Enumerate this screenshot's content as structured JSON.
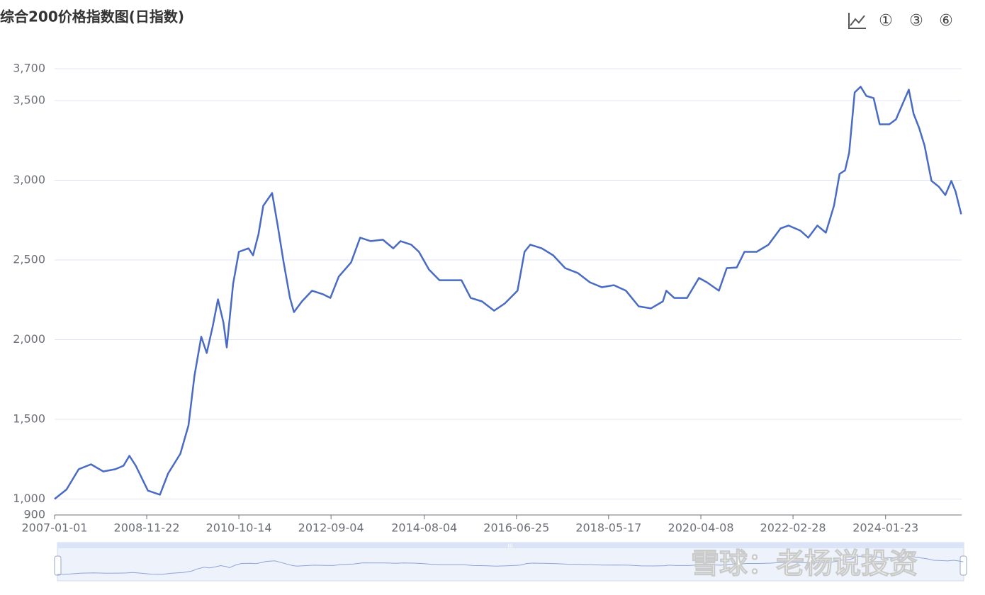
{
  "chart_data": {
    "type": "line",
    "title": "综合200价格指数图(日指数)",
    "toolbar": [
      "①",
      "③",
      "⑥"
    ],
    "watermark": "雪球：老杨说投资",
    "x": [
      "2007-01-01",
      "2007-04-01",
      "2007-07-01",
      "2007-10-01",
      "2008-01-01",
      "2008-04-01",
      "2008-06-01",
      "2008-07-15",
      "2008-09-01",
      "2008-12-01",
      "2009-03-01",
      "2009-05-01",
      "2009-08-01",
      "2009-10-01",
      "2009-11-15",
      "2010-01-05",
      "2010-02-15",
      "2010-04-01",
      "2010-05-10",
      "2010-06-20",
      "2010-07-15",
      "2010-09-01",
      "2010-10-14",
      "2010-12-25",
      "2011-01-28",
      "2011-03-10",
      "2011-04-15",
      "2011-06-20",
      "2011-08-01",
      "2011-09-15",
      "2011-11-01",
      "2011-12-01",
      "2012-01-30",
      "2012-04-15",
      "2012-07-08",
      "2012-08-30",
      "2012-11-01",
      "2013-02-01",
      "2013-04-10",
      "2013-06-28",
      "2013-09-27",
      "2013-12-15",
      "2014-02-07",
      "2014-04-28",
      "2014-06-25",
      "2014-09-08",
      "2014-11-26",
      "2015-02-25",
      "2015-05-10",
      "2015-07-18",
      "2015-10-11",
      "2016-01-10",
      "2016-03-30",
      "2016-07-03",
      "2016-08-25",
      "2016-10-07",
      "2017-01-01",
      "2017-03-28",
      "2017-06-25",
      "2017-09-28",
      "2017-12-27",
      "2018-03-27",
      "2018-06-26",
      "2018-09-24",
      "2018-12-29",
      "2019-03-30",
      "2019-06-28",
      "2019-07-24",
      "2019-09-21",
      "2019-12-26",
      "2020-03-25",
      "2020-05-23",
      "2020-08-21",
      "2020-10-19",
      "2021-01-02",
      "2021-03-01",
      "2021-05-31",
      "2021-08-28",
      "2021-11-27",
      "2022-01-25",
      "2022-04-24",
      "2022-06-22",
      "2022-08-30",
      "2022-11-01",
      "2023-01-01",
      "2023-02-12",
      "2023-03-25",
      "2023-04-25",
      "2023-06-05",
      "2023-07-20",
      "2023-09-01",
      "2023-10-25",
      "2023-12-10",
      "2024-02-20",
      "2024-04-10",
      "2024-06-01",
      "2024-07-15",
      "2024-08-20",
      "2024-09-30",
      "2024-11-10",
      "2025-01-01",
      "2025-02-25",
      "2025-04-15",
      "2025-05-30",
      "2025-07-01",
      "2025-08-12"
    ],
    "series": [
      {
        "name": "综合200价格指数",
        "color": "#4a6bc4",
        "values": [
          1000,
          1060,
          1187,
          1218,
          1173,
          1187,
          1209,
          1271,
          1209,
          1053,
          1027,
          1160,
          1284,
          1462,
          1773,
          2018,
          1916,
          2084,
          2253,
          2107,
          1951,
          2351,
          2551,
          2573,
          2529,
          2662,
          2840,
          2920,
          2716,
          2484,
          2262,
          2173,
          2240,
          2307,
          2284,
          2262,
          2396,
          2484,
          2640,
          2618,
          2627,
          2573,
          2618,
          2596,
          2551,
          2440,
          2373,
          2373,
          2373,
          2262,
          2240,
          2182,
          2227,
          2307,
          2551,
          2596,
          2573,
          2529,
          2449,
          2418,
          2360,
          2329,
          2342,
          2307,
          2209,
          2196,
          2240,
          2307,
          2262,
          2262,
          2387,
          2360,
          2307,
          2449,
          2453,
          2551,
          2551,
          2596,
          2698,
          2716,
          2684,
          2640,
          2716,
          2671,
          2840,
          3040,
          3062,
          3173,
          3551,
          3587,
          3529,
          3516,
          3351,
          3351,
          3382,
          3484,
          3569,
          3418,
          3329,
          3218,
          2996,
          2960,
          2907,
          2996,
          2929,
          2787
        ]
      }
    ],
    "xlim": [
      "2007-01-01",
      "2025-08-15"
    ],
    "xticks": [
      "2007-01-01",
      "2008-11-22",
      "2010-10-14",
      "2012-09-04",
      "2014-08-04",
      "2016-06-25",
      "2018-05-17",
      "2020-04-08",
      "2022-02-28",
      "2024-01-23"
    ],
    "ylim": [
      900,
      3700
    ],
    "yticks": [
      900,
      {
        "value": 1000,
        "label": "1,000"
      },
      {
        "value": 1500,
        "label": "1,500"
      },
      {
        "value": 2000,
        "label": "2,000"
      },
      {
        "value": 2500,
        "label": "2,500"
      },
      {
        "value": 3000,
        "label": "3,000"
      },
      {
        "value": 3500,
        "label": "3,500"
      },
      {
        "value": 3700,
        "label": "3,700"
      }
    ],
    "grid": true
  }
}
